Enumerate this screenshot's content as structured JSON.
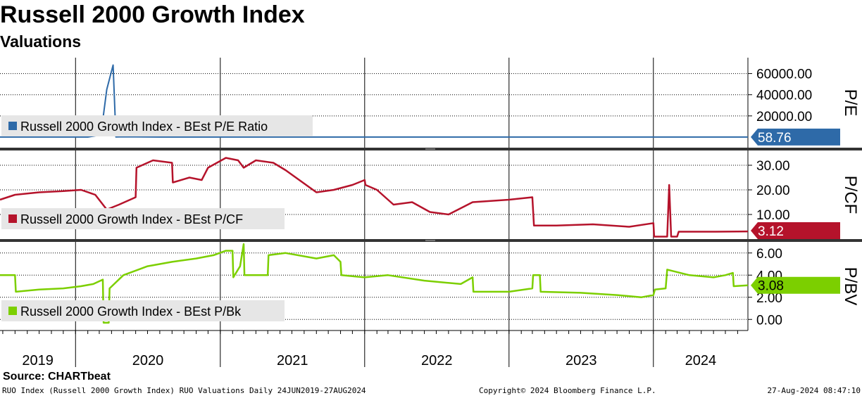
{
  "title": "Russell 2000 Growth Index",
  "subtitle": "Valuations",
  "source": "Source: CHARTbeat",
  "footer": {
    "left": "RUO Index (Russell 2000 Growth Index) RUO Valuations  Daily 24JUN2019-27AUG2024",
    "center": "Copyright© 2024 Bloomberg Finance L.P.",
    "right": "27-Aug-2024 08:47:10"
  },
  "colors": {
    "pe": "#2e6aa8",
    "pcf": "#b5132b",
    "pbv": "#7ccf00",
    "grid": "#000000"
  },
  "chart_data": [
    {
      "type": "line",
      "axis_label": "P/E",
      "legend": "Russell 2000 Growth Index - BEst P/E Ratio",
      "last_value": "58.76",
      "ylim": [
        -10000,
        75000
      ],
      "ticks": [
        "20000.00",
        "40000.00",
        "60000.00"
      ],
      "tick_values": [
        20000,
        40000,
        60000
      ],
      "grid": true,
      "series": [
        {
          "name": "Russell 2000 Growth Index - BEst P/E Ratio",
          "x": [
            "2019-06-24",
            "2019-09-01",
            "2019-12-01",
            "2020-02-01",
            "2020-03-05",
            "2020-03-20",
            "2020-04-05",
            "2020-04-12",
            "2020-05-01",
            "2020-08-01",
            "2021-02-01",
            "2021-06-01",
            "2022-01-01",
            "2023-01-01",
            "2024-01-01",
            "2024-08-27"
          ],
          "y": [
            30,
            30,
            30,
            30,
            2000,
            45000,
            68000,
            100,
            300,
            25,
            35,
            30,
            28,
            30,
            40,
            58.76
          ]
        }
      ]
    },
    {
      "type": "line",
      "axis_label": "P/CF",
      "legend": "Russell 2000 Growth Index - BEst P/CF",
      "last_value": "3.12",
      "ylim": [
        0,
        36
      ],
      "ticks": [
        "10.00",
        "20.00",
        "30.00"
      ],
      "tick_values": [
        10,
        20,
        30
      ],
      "grid": true,
      "series": [
        {
          "name": "Russell 2000 Growth Index - BEst P/CF",
          "x": [
            "2019-06-24",
            "2019-08-01",
            "2019-10-01",
            "2019-12-01",
            "2020-01-15",
            "2020-02-20",
            "2020-03-20",
            "2020-04-20",
            "2020-06-01",
            "2020-06-03",
            "2020-07-15",
            "2020-09-01",
            "2020-09-03",
            "2020-10-15",
            "2020-11-15",
            "2020-12-01",
            "2021-01-15",
            "2021-02-15",
            "2021-03-01",
            "2021-04-01",
            "2021-05-15",
            "2021-06-15",
            "2021-09-01",
            "2021-10-15",
            "2021-12-01",
            "2022-01-01",
            "2022-01-03",
            "2022-02-01",
            "2022-03-15",
            "2022-05-01",
            "2022-06-15",
            "2022-08-01",
            "2022-10-01",
            "2023-01-01",
            "2023-03-01",
            "2023-03-05",
            "2023-05-01",
            "2023-08-01",
            "2023-11-01",
            "2024-01-01",
            "2024-01-03",
            "2024-02-05",
            "2024-02-10",
            "2024-02-15",
            "2024-02-20",
            "2024-03-01",
            "2024-03-05",
            "2024-06-01",
            "2024-08-27"
          ],
          "y": [
            16,
            18,
            19,
            19.5,
            20,
            18,
            12,
            14,
            17,
            29,
            32,
            31,
            23,
            25,
            24,
            29,
            33,
            32,
            29,
            32,
            31,
            28,
            19,
            20,
            22,
            24,
            22,
            20,
            14,
            15,
            11,
            10,
            15,
            16,
            17,
            5.5,
            5.5,
            6,
            5,
            6.5,
            1,
            1,
            22,
            1,
            1,
            1,
            3,
            3,
            3.12
          ]
        }
      ]
    },
    {
      "type": "line",
      "axis_label": "P/BV",
      "legend": "Russell 2000 Growth Index - BEst P/Bk",
      "last_value": "3.08",
      "ylim": [
        -1,
        7
      ],
      "ticks": [
        "0.00",
        "2.00",
        "4.00",
        "6.00"
      ],
      "tick_values": [
        0,
        2,
        4,
        6
      ],
      "grid": true,
      "series": [
        {
          "name": "Russell 2000 Growth Index - BEst P/Bk",
          "x": [
            "2019-06-24",
            "2019-08-01",
            "2019-08-03",
            "2019-10-01",
            "2019-12-01",
            "2020-01-15",
            "2020-02-15",
            "2020-03-10",
            "2020-03-12",
            "2020-03-25",
            "2020-03-27",
            "2020-05-01",
            "2020-07-01",
            "2020-09-01",
            "2020-11-01",
            "2020-12-15",
            "2021-01-15",
            "2021-02-01",
            "2021-02-03",
            "2021-02-20",
            "2021-03-01",
            "2021-03-03",
            "2021-05-01",
            "2021-05-03",
            "2021-06-15",
            "2021-09-01",
            "2021-10-15",
            "2021-11-01",
            "2021-11-03",
            "2022-01-01",
            "2022-03-01",
            "2022-06-01",
            "2022-09-01",
            "2022-10-01",
            "2022-10-03",
            "2023-01-01",
            "2023-03-01",
            "2023-03-03",
            "2023-03-20",
            "2023-03-22",
            "2023-07-01",
            "2023-10-01",
            "2023-12-01",
            "2024-01-01",
            "2024-01-05",
            "2024-02-01",
            "2024-02-05",
            "2024-04-01",
            "2024-06-01",
            "2024-07-01",
            "2024-07-20",
            "2024-07-22",
            "2024-08-27"
          ],
          "y": [
            4,
            4,
            2.5,
            2.7,
            2.8,
            3,
            3.2,
            3.6,
            -0.3,
            -0.3,
            2.8,
            4,
            4.8,
            5.2,
            5.5,
            5.8,
            6.2,
            6.2,
            3.8,
            4.8,
            6.8,
            4,
            4,
            5.8,
            6,
            5.5,
            5.8,
            5.2,
            4,
            3.8,
            4,
            3.5,
            3.2,
            3.8,
            2.5,
            2.5,
            2.8,
            4,
            4,
            2.5,
            2.4,
            2.2,
            2,
            2.2,
            2.7,
            2.8,
            4.5,
            4,
            3.8,
            4,
            4.2,
            3,
            3.08
          ]
        }
      ]
    }
  ],
  "x_axis": {
    "start": "2019-06-24",
    "end": "2024-08-27",
    "year_labels": [
      "2019",
      "2020",
      "2021",
      "2022",
      "2023",
      "2024"
    ]
  }
}
